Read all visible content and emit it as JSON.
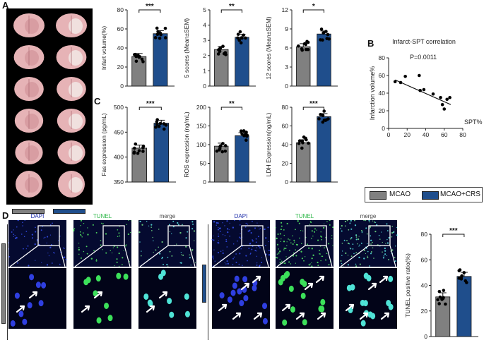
{
  "panel_letters": {
    "a": "A",
    "b": "B",
    "c": "C",
    "d": "D"
  },
  "colors": {
    "mcao": "#808080",
    "mcao_crs": "#1f4e8c",
    "dapi": "#1a2aa8",
    "tunel": "#2fb84a",
    "merge": "#1aa8a8"
  },
  "legend": {
    "items": [
      {
        "label": "MCAO",
        "color": "#808080"
      },
      {
        "label": "MCAO+CRS",
        "color": "#1f4e8c"
      }
    ]
  },
  "microscopy": {
    "left_labels": [
      "DAPI",
      "TUNEL",
      "merge"
    ],
    "right_labels": [
      "DAPI",
      "TUNEL",
      "merge"
    ]
  },
  "chart_data": [
    {
      "type": "bar",
      "categories": [
        "MCAO",
        "MCAO+CRS"
      ],
      "values": [
        31,
        55
      ],
      "ylabel": "Infart volume(%)",
      "ylim": [
        0,
        80
      ],
      "yticks": [
        0,
        20,
        40,
        60,
        80
      ],
      "significance": "***"
    },
    {
      "type": "bar",
      "categories": [
        "MCAO",
        "MCAO+CRS"
      ],
      "values": [
        2.4,
        3.2
      ],
      "ylabel": "5 scores (Mean±SEM)",
      "ylim": [
        0,
        5
      ],
      "yticks": [
        0,
        1,
        2,
        3,
        4,
        5
      ],
      "significance": "**"
    },
    {
      "type": "bar",
      "categories": [
        "MCAO",
        "MCAO+CRS"
      ],
      "values": [
        6.2,
        8.2
      ],
      "ylabel": "12 scores (Mean±SEM)",
      "ylim": [
        0,
        12
      ],
      "yticks": [
        0,
        3,
        6,
        9,
        12
      ],
      "significance": "*"
    },
    {
      "type": "scatter",
      "title": "Infarct-SPT correlation",
      "annotation": "P=0.0011",
      "xlabel": "SPT%",
      "ylabel": "Infarction volume%",
      "xlim": [
        0,
        80
      ],
      "ylim": [
        0,
        80
      ],
      "xticks": [
        0,
        20,
        40,
        60,
        80
      ],
      "yticks": [
        0,
        20,
        40,
        60,
        80
      ],
      "points": [
        [
          7,
          53
        ],
        [
          13,
          52
        ],
        [
          18,
          59
        ],
        [
          33,
          60
        ],
        [
          34,
          43
        ],
        [
          38,
          44
        ],
        [
          48,
          39
        ],
        [
          56,
          35
        ],
        [
          58,
          27
        ],
        [
          60,
          22
        ],
        [
          63,
          33
        ],
        [
          66,
          35
        ]
      ],
      "fit": [
        [
          7,
          55
        ],
        [
          67,
          27
        ]
      ]
    },
    {
      "type": "bar",
      "categories": [
        "MCAO",
        "MCAO+CRS"
      ],
      "values": [
        418,
        468
      ],
      "ylabel": "Fas expression (pg/mL)",
      "ylim": [
        350,
        500
      ],
      "yticks": [
        350,
        400,
        450,
        500
      ],
      "significance": "***"
    },
    {
      "type": "bar",
      "categories": [
        "MCAO",
        "MCAO+CRS"
      ],
      "values": [
        96,
        124
      ],
      "ylabel": "ROS expression (ng/mL)",
      "ylim": [
        0,
        200
      ],
      "yticks": [
        0,
        50,
        100,
        150,
        200
      ],
      "significance": "**"
    },
    {
      "type": "bar",
      "categories": [
        "MCAO",
        "MCAO+CRS"
      ],
      "values": [
        42,
        70
      ],
      "ylabel": "LDH Expression(ng/mL)",
      "ylim": [
        0,
        80
      ],
      "yticks": [
        0,
        20,
        40,
        60,
        80
      ],
      "significance": "***"
    },
    {
      "type": "bar",
      "categories": [
        "MCAO",
        "MCAO+CRS"
      ],
      "values": [
        31,
        47
      ],
      "ylabel": "TUNEL positive ratio(%)",
      "ylim": [
        0,
        80
      ],
      "yticks": [
        0,
        20,
        40,
        60,
        80
      ],
      "significance": "***"
    }
  ]
}
